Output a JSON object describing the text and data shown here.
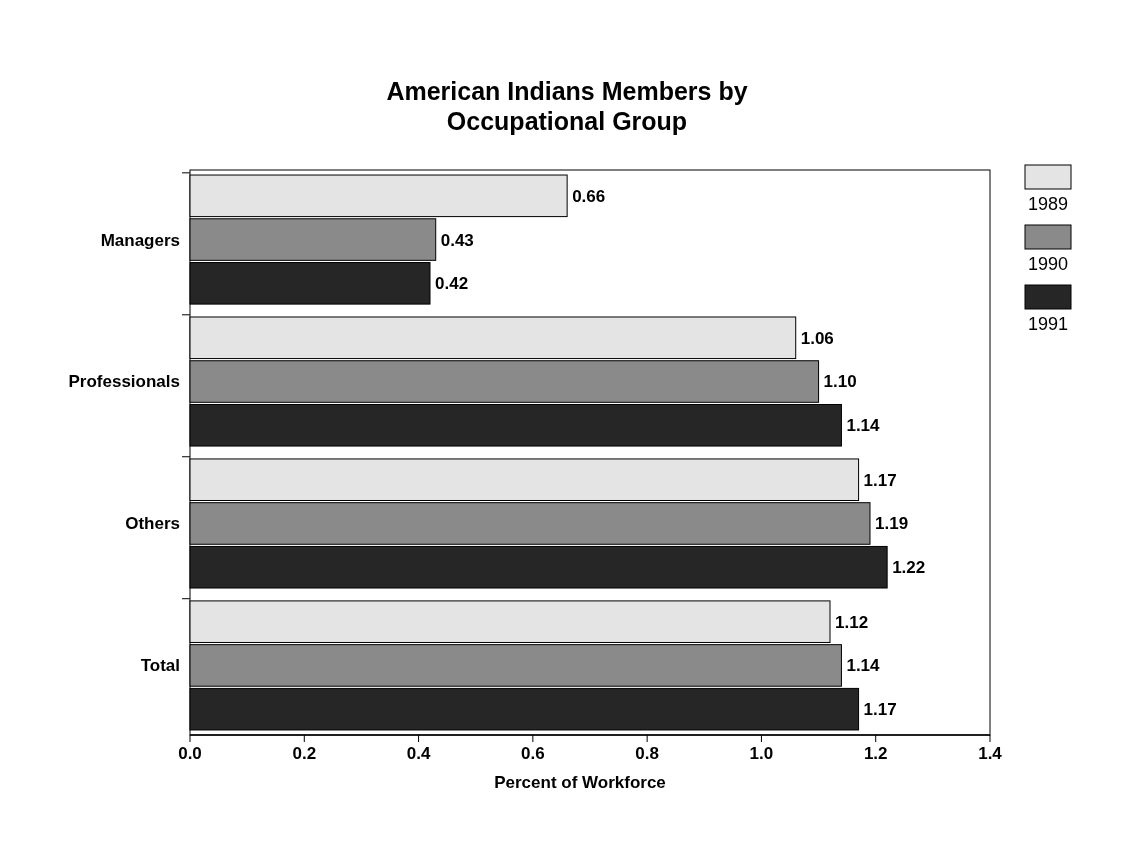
{
  "chart_data": {
    "type": "bar",
    "orientation": "horizontal",
    "title": "American Indians Members by Occupational Group",
    "xlabel": "Percent of Workforce",
    "categories": [
      "Managers",
      "Professionals",
      "Others",
      "Total"
    ],
    "series": [
      {
        "name": "1989",
        "color": "#e4e4e4",
        "values": [
          0.66,
          1.06,
          1.17,
          1.12
        ],
        "value_labels": [
          "0.66",
          "1.06",
          "1.17",
          "1.12"
        ]
      },
      {
        "name": "1990",
        "color": "#8a8a8a",
        "values": [
          0.43,
          1.1,
          1.19,
          1.14
        ],
        "value_labels": [
          "0.43",
          "1.10",
          "1.19",
          "1.14"
        ]
      },
      {
        "name": "1991",
        "color": "#262626",
        "values": [
          0.42,
          1.14,
          1.22,
          1.17
        ],
        "value_labels": [
          "0.42",
          "1.14",
          "1.22",
          "1.17"
        ]
      }
    ],
    "xlim": [
      0,
      1.4
    ],
    "xticks": [
      {
        "value": 0,
        "label": "0.0"
      },
      0.2,
      0.4,
      0.6,
      0.8,
      {
        "value": 1,
        "label": "1.0"
      },
      1.2,
      1.4
    ],
    "grid": false,
    "legend": "right"
  }
}
